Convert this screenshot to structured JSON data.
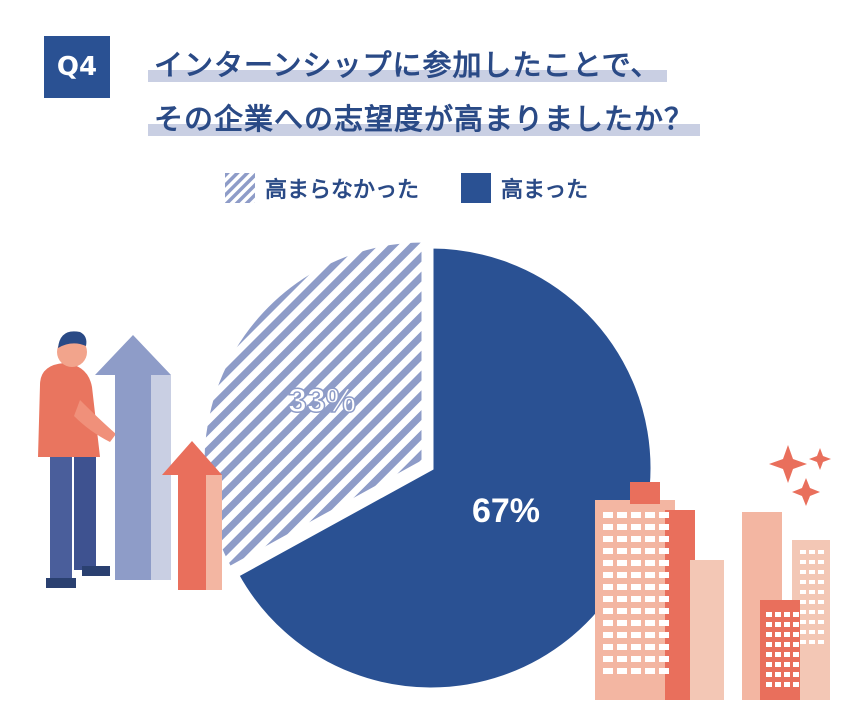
{
  "header": {
    "badge": "Q4",
    "title_line1": "インターンシップに参加したことで、",
    "title_line2": "その企業への志望度が高まりましたか？"
  },
  "colors": {
    "navy": "#2a5193",
    "hatch": "#8e9cc8",
    "highlight": "#c9cfe3",
    "accent_orange": "#e96f5c",
    "accent_peach": "#f3b6a2"
  },
  "icons": [
    "person-illustration",
    "arrow-up-icon",
    "buildings-illustration",
    "sparkle-icon"
  ],
  "chart_data": {
    "type": "pie",
    "legend_position": "top",
    "slices": [
      {
        "label": "高まらなかった",
        "value": 33,
        "display": "33%",
        "pattern": "hatched"
      },
      {
        "label": "高まった",
        "value": 67,
        "display": "67%",
        "pattern": "solid"
      }
    ]
  }
}
